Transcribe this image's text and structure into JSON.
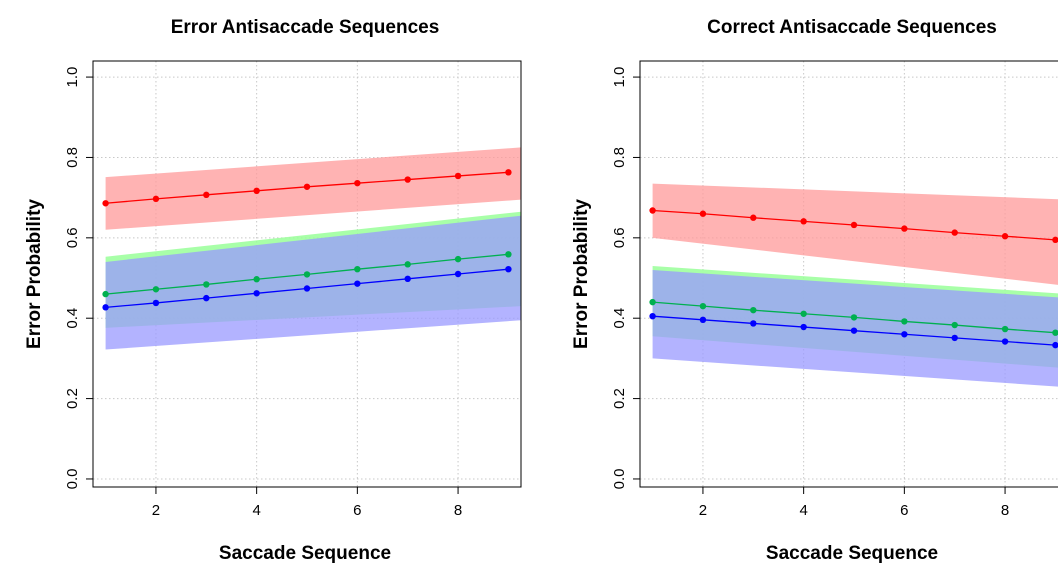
{
  "chart_data": [
    {
      "type": "line",
      "title": "Error Antisaccade Sequences",
      "xlabel": "Saccade Sequence",
      "ylabel": "Error Probability",
      "xlim": [
        0.75,
        9.25
      ],
      "ylim": [
        -0.02,
        1.04
      ],
      "xticks": [
        "2",
        "4",
        "6",
        "8"
      ],
      "yticks": [
        "0.0",
        "0.2",
        "0.4",
        "0.6",
        "0.8",
        "1.0"
      ],
      "grid": true,
      "x": [
        1,
        2,
        3,
        4,
        5,
        6,
        7,
        8,
        9
      ],
      "series": [
        {
          "color": "#ff0000",
          "band_color": "#ff9999",
          "values": [
            0.686,
            0.697,
            0.707,
            0.717,
            0.727,
            0.736,
            0.745,
            0.754,
            0.763
          ],
          "band": [
            [
              1,
              0.62,
              0.751
            ],
            [
              9.25,
              0.695,
              0.825
            ]
          ]
        },
        {
          "color": "#00b050",
          "band_color": "#99ff99",
          "values": [
            0.46,
            0.472,
            0.484,
            0.497,
            0.509,
            0.522,
            0.534,
            0.547,
            0.559
          ],
          "band": [
            [
              1,
              0.376,
              0.553
            ],
            [
              9.25,
              0.43,
              0.665
            ]
          ]
        },
        {
          "color": "#0000ff",
          "band_color": "#9999ff",
          "values": [
            0.427,
            0.438,
            0.45,
            0.462,
            0.474,
            0.486,
            0.498,
            0.51,
            0.522
          ],
          "band": [
            [
              1,
              0.322,
              0.54
            ],
            [
              9.25,
              0.395,
              0.655
            ]
          ]
        }
      ]
    },
    {
      "type": "line",
      "title": "Correct Antisaccade Sequences",
      "xlabel": "Saccade Sequence",
      "ylabel": "Error Probability",
      "xlim": [
        0.75,
        9.25
      ],
      "ylim": [
        -0.02,
        1.04
      ],
      "xticks": [
        "2",
        "4",
        "6",
        "8"
      ],
      "yticks": [
        "0.0",
        "0.2",
        "0.4",
        "0.6",
        "0.8",
        "1.0"
      ],
      "grid": true,
      "x": [
        1,
        2,
        3,
        4,
        5,
        6,
        7,
        8,
        9
      ],
      "series": [
        {
          "color": "#ff0000",
          "band_color": "#ff9999",
          "values": [
            0.668,
            0.66,
            0.65,
            0.641,
            0.632,
            0.623,
            0.613,
            0.604,
            0.595
          ],
          "band": [
            [
              1,
              0.6,
              0.735
            ],
            [
              9.25,
              0.48,
              0.695
            ]
          ]
        },
        {
          "color": "#00b050",
          "band_color": "#99ff99",
          "values": [
            0.44,
            0.43,
            0.42,
            0.411,
            0.402,
            0.392,
            0.383,
            0.373,
            0.364
          ],
          "band": [
            [
              1,
              0.355,
              0.53
            ],
            [
              9.25,
              0.275,
              0.46
            ]
          ]
        },
        {
          "color": "#0000ff",
          "band_color": "#9999ff",
          "values": [
            0.405,
            0.396,
            0.387,
            0.378,
            0.369,
            0.36,
            0.351,
            0.342,
            0.333
          ],
          "band": [
            [
              1,
              0.3,
              0.52
            ],
            [
              9.25,
              0.228,
              0.45
            ]
          ]
        }
      ]
    }
  ]
}
